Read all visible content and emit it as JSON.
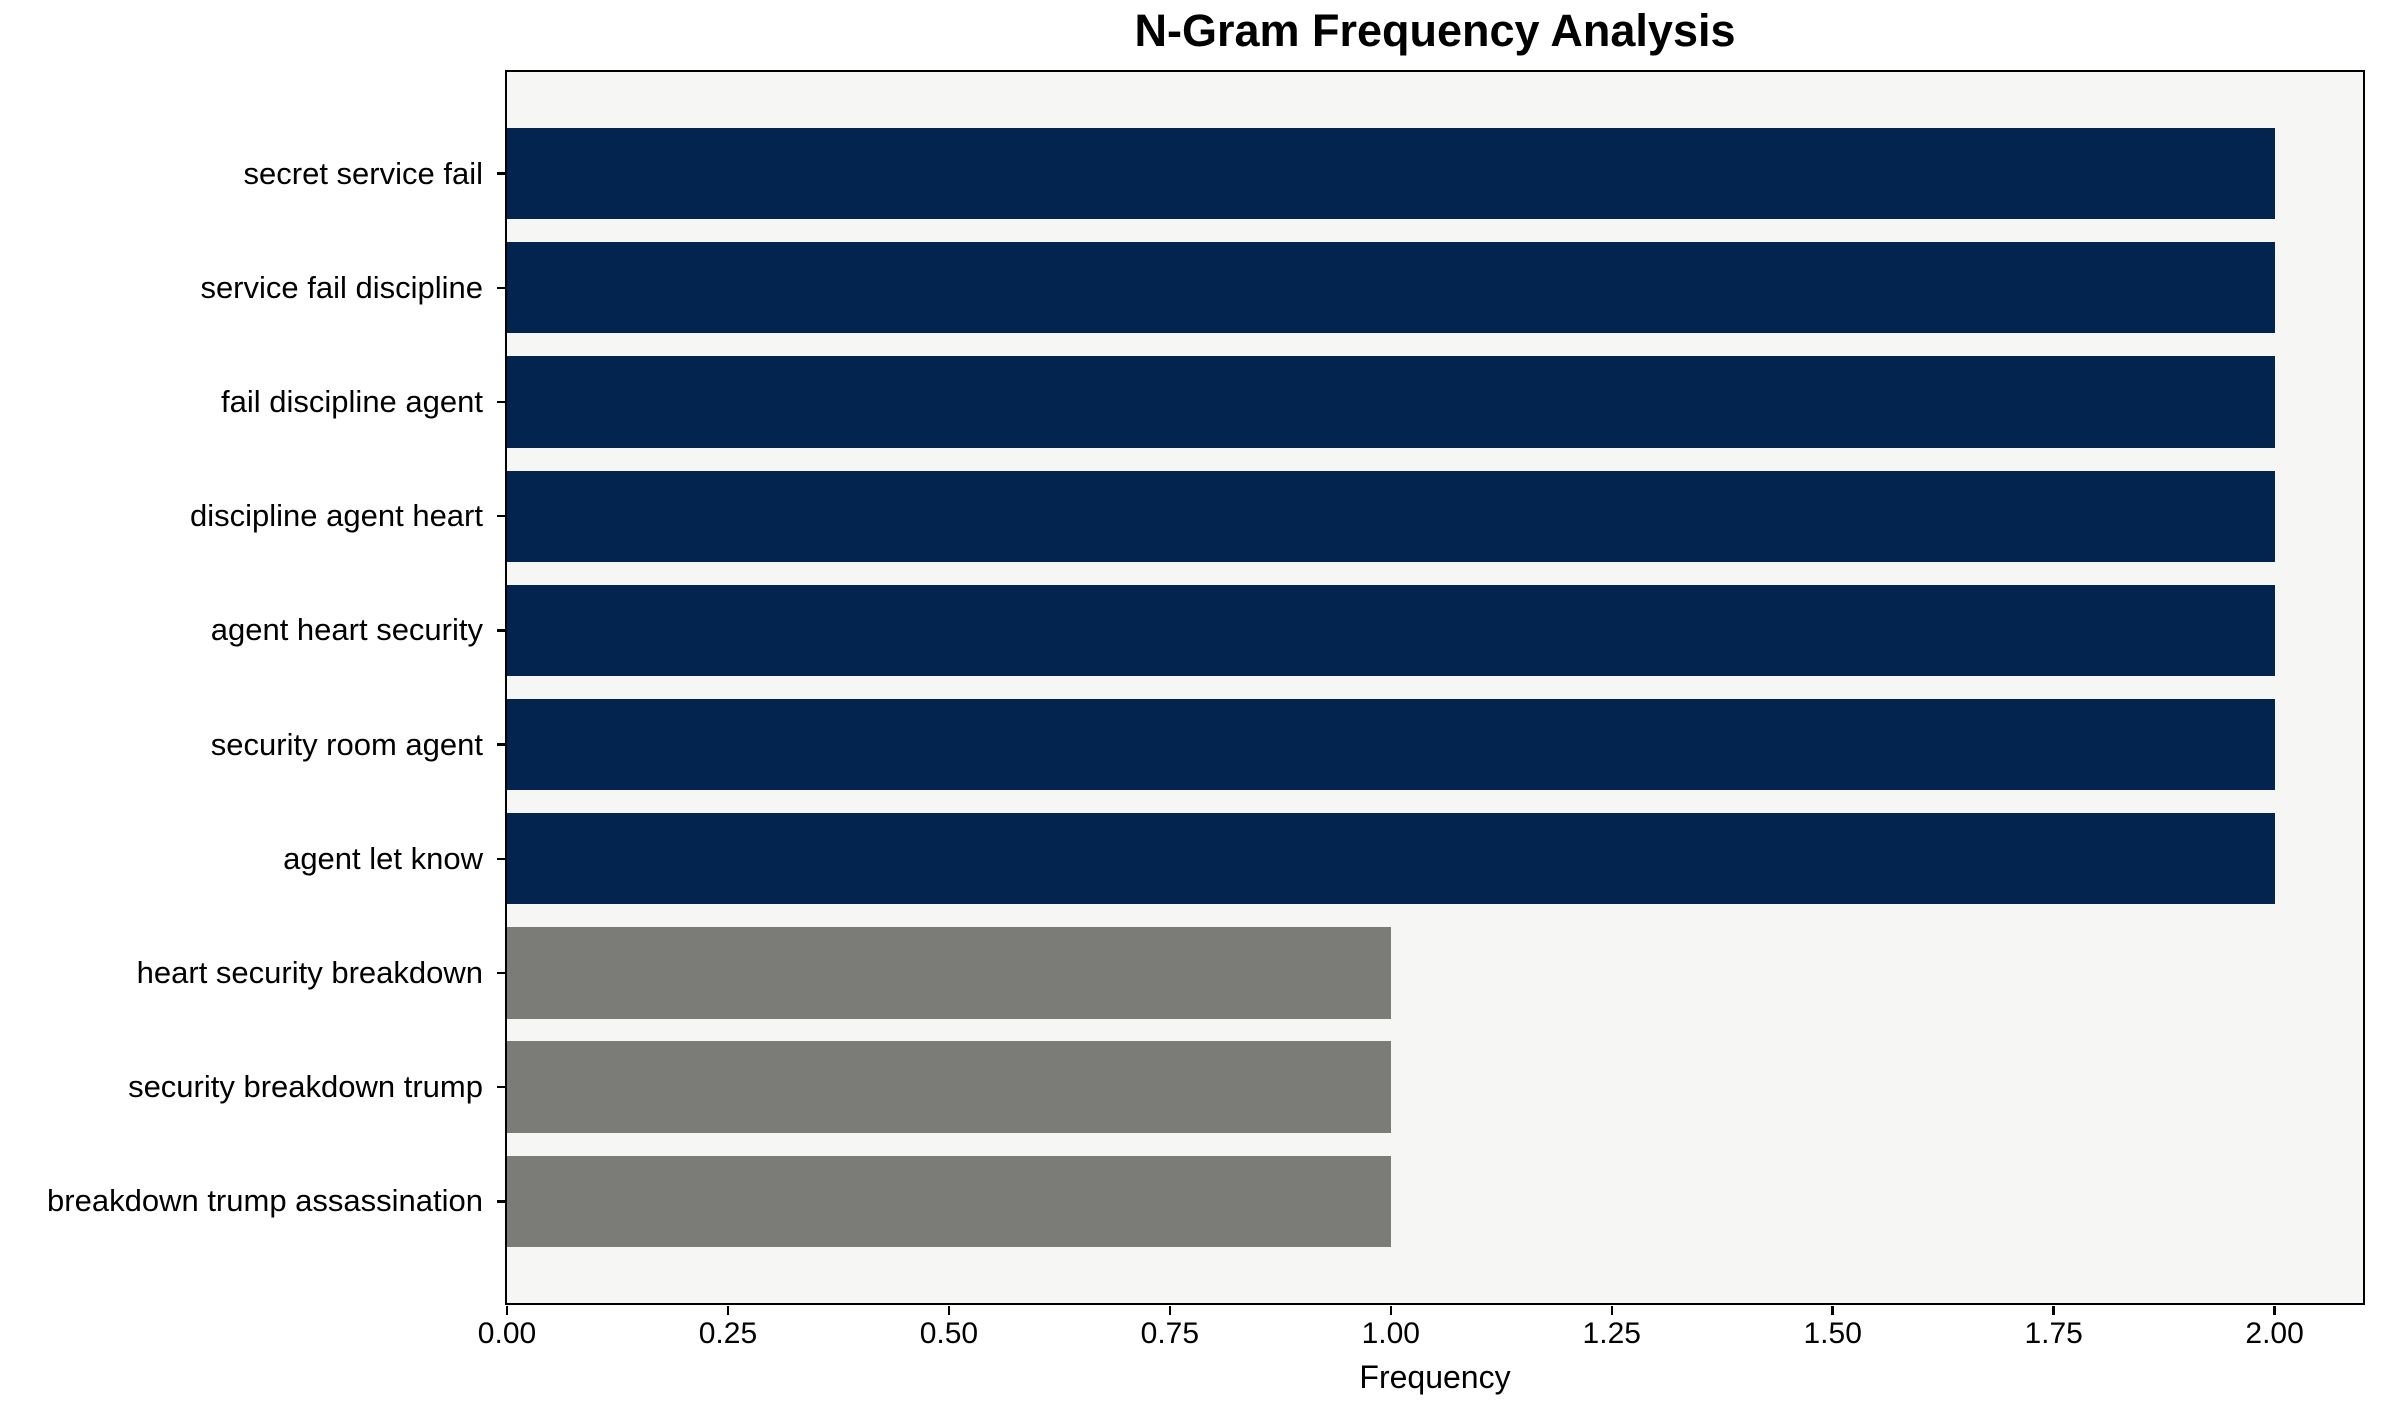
{
  "chart_data": {
    "type": "bar",
    "orientation": "horizontal",
    "title": "N-Gram Frequency Analysis",
    "xlabel": "Frequency",
    "ylabel": "",
    "categories": [
      "secret service fail",
      "service fail discipline",
      "fail discipline agent",
      "discipline agent heart",
      "agent heart security",
      "security room agent",
      "agent let know",
      "heart security breakdown",
      "security breakdown trump",
      "breakdown trump assassination"
    ],
    "values": [
      2,
      2,
      2,
      2,
      2,
      2,
      2,
      1,
      1,
      1
    ],
    "bar_colors": [
      "#03244E",
      "#03244E",
      "#03244E",
      "#03244E",
      "#03244E",
      "#03244E",
      "#03244E",
      "#7B7B78",
      "#7B7B78",
      "#7B7B78"
    ],
    "xlim": [
      0,
      2.1
    ],
    "xticks": [
      {
        "value": 0.0,
        "label": "0.00"
      },
      {
        "value": 0.25,
        "label": "0.25"
      },
      {
        "value": 0.5,
        "label": "0.50"
      },
      {
        "value": 0.75,
        "label": "0.75"
      },
      {
        "value": 1.0,
        "label": "1.00"
      },
      {
        "value": 1.25,
        "label": "1.25"
      },
      {
        "value": 1.5,
        "label": "1.50"
      },
      {
        "value": 1.75,
        "label": "1.75"
      },
      {
        "value": 2.0,
        "label": "2.00"
      }
    ],
    "bar_height_fraction": 0.8,
    "grid": false,
    "legend": null,
    "colors": {
      "bar_primary": "#03244E",
      "bar_secondary": "#7B7B78",
      "plot_background": "#F6F6F5",
      "figure_background": "#FFFFFF",
      "spine": "#000000",
      "text": "#000000"
    }
  }
}
